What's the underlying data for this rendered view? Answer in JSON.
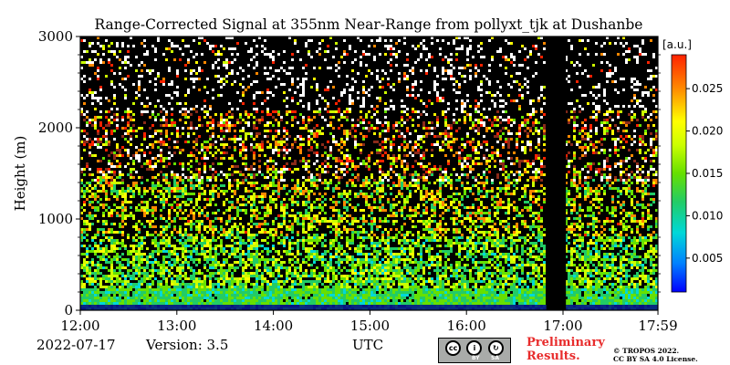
{
  "chart_data": {
    "type": "heatmap",
    "title": "Range-Corrected Signal at 355nm Near-Range from pollyxt_tjk at Dushanbe",
    "ylabel": "Height (m)",
    "xlabel": "UTC",
    "x_ticks": [
      "12:00",
      "13:00",
      "14:00",
      "15:00",
      "16:00",
      "17:00",
      "17:59"
    ],
    "y_ticks": [
      "0",
      "1000",
      "2000",
      "3000"
    ],
    "xlim_hours": [
      12.0,
      17.983
    ],
    "ylim": [
      0,
      3000
    ],
    "colorbar": {
      "unit_label": "[a.u.]",
      "ticks": [
        "0.005",
        "0.010",
        "0.015",
        "0.020",
        "0.025"
      ],
      "tick_values": [
        0.005,
        0.01,
        0.015,
        0.02,
        0.025
      ],
      "range": [
        0.001,
        0.029
      ],
      "colormap": [
        "#0000ff",
        "#0080ff",
        "#00d8d8",
        "#22cc66",
        "#66e000",
        "#ccff00",
        "#ffff00",
        "#ff8800",
        "#ff2200"
      ]
    },
    "data_gap": {
      "start_hour": 16.83,
      "end_hour": 17.03
    },
    "profile_description": {
      "near_surface_value": 0.003,
      "boundary_layer_top_m": 800,
      "elevated_layer_m": [
        1300,
        2200
      ],
      "background": "#000000"
    }
  },
  "footer": {
    "date": "2022-07-17",
    "version": "Version: 3.5",
    "utc_label": "UTC",
    "license_badge": {
      "cc": "cc",
      "by": "BY",
      "sa": "SA"
    },
    "preliminary_line1": "Preliminary",
    "preliminary_line2": "Results.",
    "copyright_line1": "© TROPOS 2022.",
    "copyright_line2": "CC BY SA 4.0 License."
  }
}
